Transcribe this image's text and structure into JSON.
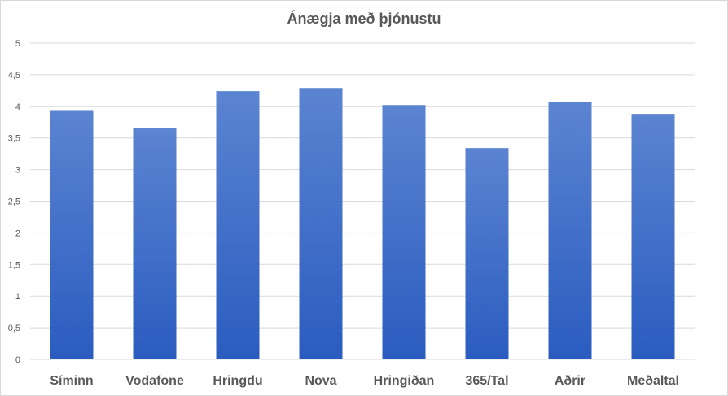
{
  "chart_data": {
    "type": "bar",
    "title": "Ánægja með þjónustu",
    "categories": [
      "Síminn",
      "Vodafone",
      "Hringdu",
      "Nova",
      "Hringiðan",
      "365/Tal",
      "Aðrir",
      "Meðaltal"
    ],
    "values": [
      3.94,
      3.65,
      4.24,
      4.29,
      4.02,
      3.34,
      4.07,
      3.88
    ],
    "ylim": [
      0,
      5
    ],
    "yticks": [
      "0",
      "0,5",
      "1",
      "1,5",
      "2",
      "2,5",
      "3",
      "3,5",
      "4",
      "4,5",
      "5"
    ],
    "grid": true,
    "legend": "none",
    "colors": {
      "bar_top": "#5b84d1",
      "bar_bottom": "#2a5cc0",
      "grid": "#d9d9d9",
      "axis_text": "#595959"
    }
  }
}
